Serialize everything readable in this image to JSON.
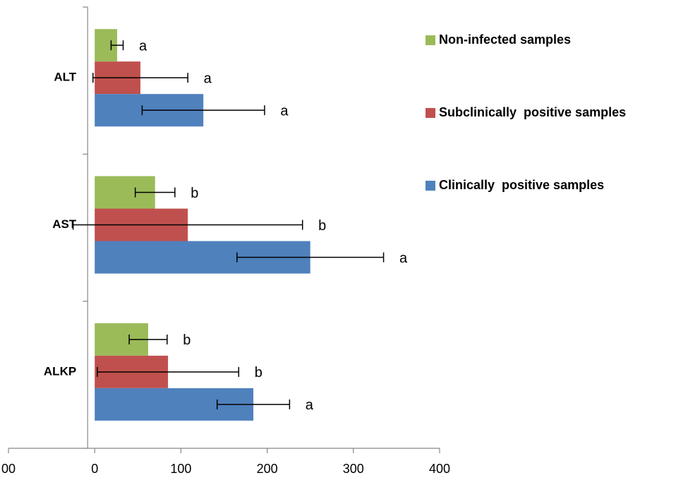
{
  "chart_data": {
    "type": "hbar",
    "categories": [
      "ALT",
      "AST",
      "ALKP"
    ],
    "series": [
      {
        "name": "Non-infected samples",
        "color": "#9bbb59",
        "values": [
          26,
          70,
          62
        ],
        "errors": [
          7,
          23,
          22
        ],
        "annotations": [
          "a",
          "b",
          "b"
        ]
      },
      {
        "name": "Subclinically  positive samples",
        "color": "#c0504d",
        "values": [
          53,
          108,
          85
        ],
        "errors": [
          55,
          133,
          82
        ],
        "annotations": [
          "a",
          "b",
          "b"
        ]
      },
      {
        "name": "Clinically  positive samples",
        "color": "#4f81bd",
        "values": [
          126,
          250,
          184
        ],
        "errors": [
          71,
          85,
          42
        ],
        "annotations": [
          "a",
          "a",
          "a"
        ]
      }
    ],
    "xlim": [
      -100,
      400
    ],
    "xticks": [
      {
        "value": -100,
        "label": "00"
      },
      0,
      100,
      200,
      300,
      400
    ]
  }
}
